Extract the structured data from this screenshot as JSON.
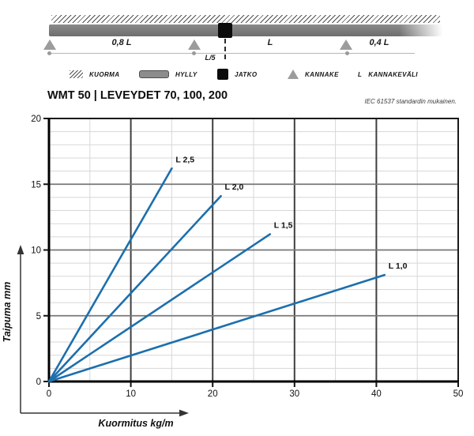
{
  "schematic": {
    "span_left": "0,8 L",
    "joint_offset": "L/5",
    "span_center": "L",
    "span_right": "0,4 L"
  },
  "legend": {
    "items": [
      {
        "icon": "load-hatch-icon",
        "label": "KUORMA"
      },
      {
        "icon": "shelf-bar-icon",
        "label": "HYLLY"
      },
      {
        "icon": "joint-square-icon",
        "label": "JATKO"
      },
      {
        "icon": "support-triangle-icon",
        "label": "KANNAKE"
      },
      {
        "icon": "letter-L-symbol",
        "symbol": "L",
        "label": "KANNAKEVÄLI"
      }
    ]
  },
  "header": {
    "title": "WMT 50 | LEVEYDET 70, 100, 200",
    "standard_note": "IEC 61537 standardin mukainen."
  },
  "chart_data": {
    "type": "line",
    "title": "WMT 50 | LEVEYDET 70, 100, 200",
    "xlabel": "Kuormitus kg/m",
    "ylabel": "Taipuma mm",
    "xlim": [
      0,
      50
    ],
    "ylim": [
      0,
      20
    ],
    "xticks": [
      0,
      10,
      20,
      30,
      40,
      50
    ],
    "yticks": [
      0,
      5,
      10,
      15,
      20
    ],
    "x_minor_step": 5,
    "y_minor_step": 1,
    "grid": true,
    "legend_position": "inline-labels",
    "line_color": "#1c6fad",
    "series": [
      {
        "name": "L 2,5",
        "x": [
          0,
          15
        ],
        "y": [
          0,
          16.2
        ]
      },
      {
        "name": "L 2,0",
        "x": [
          0,
          21
        ],
        "y": [
          0,
          14.1
        ]
      },
      {
        "name": "L 1,5",
        "x": [
          0,
          27
        ],
        "y": [
          0,
          11.2
        ]
      },
      {
        "name": "L 1,0",
        "x": [
          0,
          41
        ],
        "y": [
          0,
          8.1
        ]
      }
    ]
  }
}
